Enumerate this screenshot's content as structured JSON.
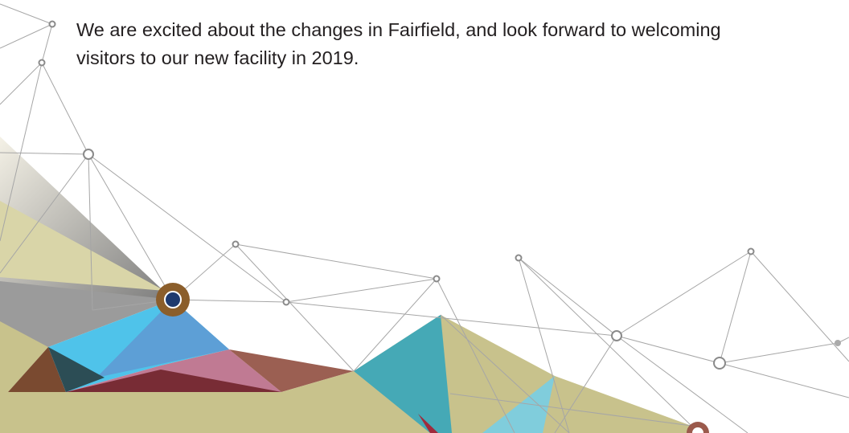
{
  "paragraph": {
    "lines": [
      "We are excited about the changes in Fairfield, and look forward to welcoming",
      "visitors to our new facility in 2019."
    ]
  }
}
